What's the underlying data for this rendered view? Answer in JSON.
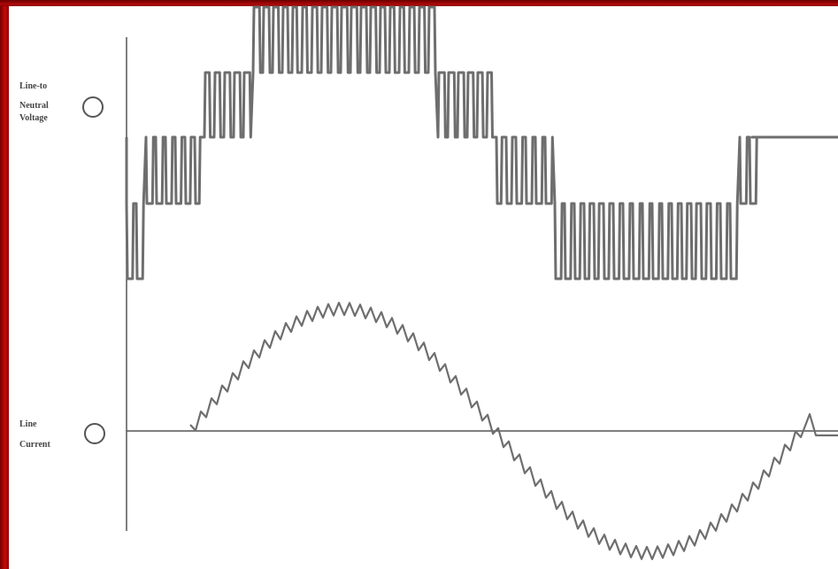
{
  "frame": {
    "accent": "#b00808"
  },
  "labels": {
    "voltage": [
      "Line-to",
      "Neutral",
      "Voltage"
    ],
    "current": [
      "Line",
      "Current"
    ]
  },
  "colors": {
    "trace": "#6e6e6e",
    "axis": "#555555",
    "marker": "#555555"
  }
}
